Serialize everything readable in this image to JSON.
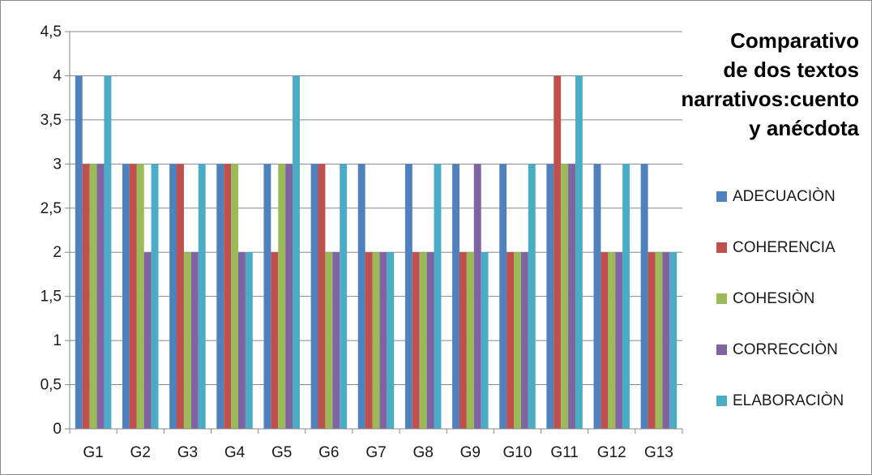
{
  "chart_data": {
    "type": "bar",
    "title_lines": [
      "Comparativo",
      "de dos textos",
      "narrativos:cuento",
      "y anécdota"
    ],
    "categories": [
      "G1",
      "G2",
      "G3",
      "G4",
      "G5",
      "G6",
      "G7",
      "G8",
      "G9",
      "G10",
      "G11",
      "G12",
      "G13"
    ],
    "series": [
      {
        "name": "ADECUACIÒN",
        "color": "#4f81bd",
        "values": [
          4,
          3,
          3,
          3,
          3,
          3,
          3,
          3,
          3,
          3,
          3,
          3,
          3
        ]
      },
      {
        "name": "COHERENCIA",
        "color": "#c0504d",
        "values": [
          3,
          3,
          3,
          3,
          2,
          3,
          2,
          2,
          2,
          2,
          4,
          2,
          2
        ]
      },
      {
        "name": "COHESIÒN",
        "color": "#9bbb59",
        "values": [
          3,
          3,
          2,
          3,
          3,
          2,
          2,
          2,
          2,
          2,
          3,
          2,
          2
        ]
      },
      {
        "name": "CORRECCIÒN",
        "color": "#8064a2",
        "values": [
          3,
          2,
          2,
          2,
          3,
          2,
          2,
          2,
          3,
          2,
          3,
          2,
          2
        ]
      },
      {
        "name": "ELABORACIÒN",
        "color": "#4bacc6",
        "values": [
          4,
          3,
          3,
          2,
          4,
          3,
          2,
          3,
          2,
          3,
          4,
          3,
          2
        ]
      }
    ],
    "y_ticks": [
      "0",
      "0,5",
      "1",
      "1,5",
      "2",
      "2,5",
      "3",
      "3,5",
      "4",
      "4,5"
    ],
    "ylim": [
      0,
      4.5
    ],
    "xlabel": "",
    "ylabel": "",
    "grid": true,
    "legend_position": "right"
  }
}
